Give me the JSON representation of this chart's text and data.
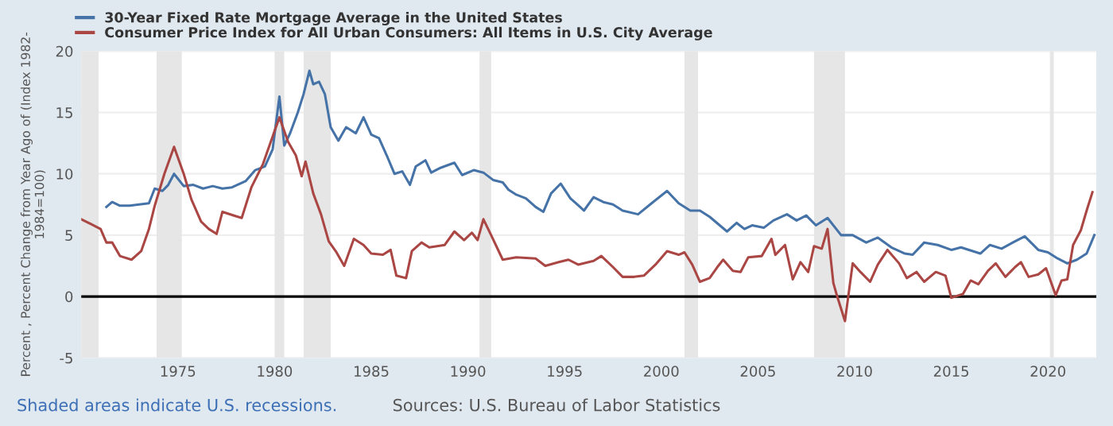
{
  "chart_data": {
    "type": "line",
    "ylabel": "Percent , Percent Change from Year Ago of (Index 1982-\n1984=100)",
    "xlim": [
      1970,
      2022.5
    ],
    "ylim": [
      -5,
      20
    ],
    "xticks": [
      1975,
      1980,
      1985,
      1990,
      1995,
      2000,
      2005,
      2010,
      2015,
      2020
    ],
    "yticks": [
      -5,
      0,
      5,
      10,
      15,
      20
    ],
    "grid": "y",
    "legend": "top left",
    "series": [
      {
        "name": "30-Year Fixed Rate Mortgage Average in the United States",
        "color": "#4572a7",
        "x": [
          1971.3,
          1971.6,
          1972.0,
          1972.5,
          1973.0,
          1973.5,
          1973.8,
          1974.2,
          1974.5,
          1974.8,
          1975.3,
          1975.8,
          1976.3,
          1976.8,
          1977.3,
          1977.8,
          1978.5,
          1979.0,
          1979.5,
          1979.9,
          1980.25,
          1980.5,
          1980.8,
          1981.2,
          1981.5,
          1981.8,
          1982.0,
          1982.3,
          1982.6,
          1982.9,
          1983.3,
          1983.7,
          1984.2,
          1984.6,
          1985.0,
          1985.4,
          1985.8,
          1986.2,
          1986.6,
          1987.0,
          1987.3,
          1987.8,
          1988.1,
          1988.6,
          1989.3,
          1989.7,
          1990.3,
          1990.8,
          1991.3,
          1991.8,
          1992.1,
          1992.5,
          1993.0,
          1993.5,
          1993.9,
          1994.3,
          1994.8,
          1995.3,
          1995.8,
          1996.0,
          1996.5,
          1997.0,
          1997.5,
          1998.0,
          1998.8,
          1999.5,
          2000.3,
          2000.9,
          2001.5,
          2002.0,
          2002.5,
          2003.4,
          2003.9,
          2004.3,
          2004.7,
          2005.3,
          2005.8,
          2006.5,
          2007.0,
          2007.5,
          2008.0,
          2008.6,
          2009.3,
          2009.9,
          2010.6,
          2011.2,
          2011.9,
          2012.6,
          2013.0,
          2013.6,
          2014.3,
          2015.0,
          2015.5,
          2016.5,
          2017.0,
          2017.6,
          2018.3,
          2018.8,
          2019.5,
          2020.0,
          2020.5,
          2021.0,
          2021.5,
          2022.0,
          2022.4
        ],
        "values": [
          7.3,
          7.7,
          7.4,
          7.4,
          7.5,
          7.6,
          8.8,
          8.6,
          9.1,
          10.0,
          9.0,
          9.1,
          8.8,
          9.0,
          8.8,
          8.9,
          9.4,
          10.3,
          10.6,
          12.0,
          16.3,
          12.3,
          13.3,
          15.0,
          16.5,
          18.4,
          17.3,
          17.5,
          16.5,
          13.8,
          12.7,
          13.8,
          13.3,
          14.6,
          13.2,
          12.9,
          11.5,
          10.0,
          10.2,
          9.1,
          10.6,
          11.1,
          10.1,
          10.5,
          10.9,
          9.9,
          10.3,
          10.1,
          9.5,
          9.3,
          8.7,
          8.3,
          8.0,
          7.3,
          6.9,
          8.4,
          9.2,
          8.0,
          7.3,
          7.0,
          8.1,
          7.7,
          7.5,
          7.0,
          6.7,
          7.6,
          8.6,
          7.6,
          7.0,
          7.0,
          6.5,
          5.3,
          6.0,
          5.5,
          5.8,
          5.6,
          6.2,
          6.7,
          6.2,
          6.6,
          5.8,
          6.4,
          5.0,
          5.0,
          4.4,
          4.8,
          4.0,
          3.5,
          3.4,
          4.4,
          4.2,
          3.8,
          4.0,
          3.5,
          4.2,
          3.9,
          4.5,
          4.9,
          3.8,
          3.6,
          3.1,
          2.7,
          3.0,
          3.5,
          5.0
        ]
      },
      {
        "name": "Consumer Price Index for All Urban Consumers: All Items in U.S. City Average",
        "color": "#aa4643",
        "x": [
          1970.0,
          1970.5,
          1971.0,
          1971.3,
          1971.6,
          1972.0,
          1972.6,
          1973.1,
          1973.5,
          1973.8,
          1974.3,
          1974.8,
          1975.3,
          1975.7,
          1976.2,
          1976.6,
          1977.0,
          1977.3,
          1977.9,
          1978.3,
          1978.8,
          1979.4,
          1980.0,
          1980.25,
          1980.7,
          1981.1,
          1981.4,
          1981.6,
          1982.0,
          1982.4,
          1982.8,
          1983.2,
          1983.6,
          1984.1,
          1984.6,
          1985.0,
          1985.6,
          1986.0,
          1986.3,
          1986.8,
          1987.1,
          1987.6,
          1988.0,
          1988.8,
          1989.3,
          1989.8,
          1990.2,
          1990.5,
          1990.8,
          1991.2,
          1991.8,
          1992.5,
          1993.5,
          1994.0,
          1994.7,
          1995.2,
          1995.7,
          1996.5,
          1996.9,
          1997.5,
          1998.0,
          1998.6,
          1999.1,
          1999.7,
          2000.3,
          2000.9,
          2001.2,
          2001.6,
          2002.0,
          2002.5,
          2002.9,
          2003.2,
          2003.7,
          2004.1,
          2004.5,
          2005.2,
          2005.7,
          2005.9,
          2006.4,
          2006.8,
          2007.2,
          2007.6,
          2007.9,
          2008.3,
          2008.6,
          2008.9,
          2009.1,
          2009.5,
          2009.9,
          2010.3,
          2010.8,
          2011.2,
          2011.7,
          2012.3,
          2012.7,
          2013.2,
          2013.6,
          2014.2,
          2014.7,
          2015.0,
          2015.6,
          2016.0,
          2016.4,
          2016.9,
          2017.3,
          2017.8,
          2018.3,
          2018.6,
          2019.0,
          2019.5,
          2019.9,
          2020.4,
          2020.7,
          2021.0,
          2021.3,
          2021.7,
          2022.0,
          2022.3
        ],
        "values": [
          6.3,
          5.9,
          5.5,
          4.4,
          4.4,
          3.3,
          3.0,
          3.7,
          5.5,
          7.4,
          10.0,
          12.2,
          10.0,
          7.9,
          6.1,
          5.5,
          5.1,
          6.9,
          6.6,
          6.4,
          8.9,
          10.8,
          13.5,
          14.6,
          12.6,
          11.5,
          9.8,
          11.0,
          8.4,
          6.7,
          4.5,
          3.6,
          2.5,
          4.7,
          4.2,
          3.5,
          3.4,
          3.8,
          1.7,
          1.5,
          3.7,
          4.4,
          4.0,
          4.2,
          5.3,
          4.6,
          5.2,
          4.6,
          6.3,
          5.0,
          3.0,
          3.2,
          3.1,
          2.5,
          2.8,
          3.0,
          2.6,
          2.9,
          3.3,
          2.4,
          1.6,
          1.6,
          1.7,
          2.6,
          3.7,
          3.4,
          3.6,
          2.6,
          1.2,
          1.5,
          2.4,
          3.0,
          2.1,
          2.0,
          3.2,
          3.3,
          4.7,
          3.4,
          4.2,
          1.4,
          2.8,
          2.0,
          4.1,
          3.9,
          5.5,
          1.1,
          0.0,
          -2.0,
          2.7,
          2.0,
          1.2,
          2.6,
          3.8,
          2.7,
          1.5,
          2.0,
          1.2,
          2.0,
          1.7,
          -0.1,
          0.2,
          1.3,
          1.0,
          2.1,
          2.7,
          1.6,
          2.4,
          2.8,
          1.6,
          1.8,
          2.3,
          0.1,
          1.3,
          1.4,
          4.2,
          5.4,
          7.0,
          8.5
        ]
      }
    ],
    "ref_lines": [
      {
        "axis": "y",
        "value": 0,
        "color": "#000000"
      }
    ],
    "bands": [
      {
        "axis": "x",
        "from": 1969.9,
        "to": 1970.9,
        "color": "#e6e6e6"
      },
      {
        "axis": "x",
        "from": 1973.9,
        "to": 1975.2,
        "color": "#e6e6e6"
      },
      {
        "axis": "x",
        "from": 1980.0,
        "to": 1980.5,
        "color": "#e6e6e6"
      },
      {
        "axis": "x",
        "from": 1981.5,
        "to": 1982.9,
        "color": "#e6e6e6"
      },
      {
        "axis": "x",
        "from": 1990.6,
        "to": 1991.2,
        "color": "#e6e6e6"
      },
      {
        "axis": "x",
        "from": 2001.2,
        "to": 2001.9,
        "color": "#e6e6e6"
      },
      {
        "axis": "x",
        "from": 2007.9,
        "to": 2009.5,
        "color": "#e6e6e6"
      },
      {
        "axis": "x",
        "from": 2020.1,
        "to": 2020.3,
        "color": "#e6e6e6"
      }
    ],
    "annotations": [
      "Shaded areas indicate U.S. recessions.",
      "Sources: U.S. Bureau of Labor Statistics"
    ]
  }
}
